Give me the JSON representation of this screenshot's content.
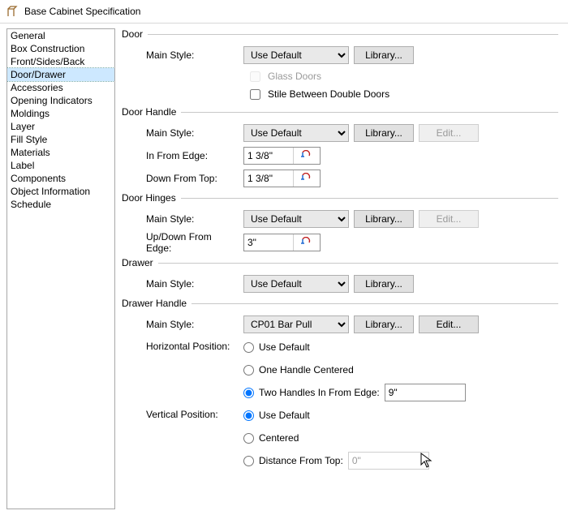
{
  "window": {
    "title": "Base Cabinet Specification"
  },
  "nav": {
    "items": [
      "General",
      "Box Construction",
      "Front/Sides/Back",
      "Door/Drawer",
      "Accessories",
      "Opening Indicators",
      "Moldings",
      "Layer",
      "Fill Style",
      "Materials",
      "Label",
      "Components",
      "Object Information",
      "Schedule"
    ],
    "selected_index": 3
  },
  "labels": {
    "main_style": "Main Style:",
    "library": "Library...",
    "edit": "Edit...",
    "in_from_edge": "In From Edge:",
    "down_from_top": "Down From Top:",
    "up_down_from_edge": "Up/Down From Edge:",
    "horizontal_position": "Horizontal Position:",
    "vertical_position": "Vertical Position:",
    "use_default_opt": "Use Default",
    "one_handle": "One Handle Centered",
    "two_handles": "Two Handles In From Edge:",
    "centered": "Centered",
    "distance_from_top": "Distance From Top:",
    "glass_doors": "Glass Doors",
    "stile_between": "Stile Between Double Doors"
  },
  "sections": {
    "door": {
      "title": "Door",
      "main_style_value": "Use Default"
    },
    "door_handle": {
      "title": "Door Handle",
      "main_style_value": "Use Default",
      "in_from_edge": "1 3/8\"",
      "down_from_top": "1 3/8\""
    },
    "door_hinges": {
      "title": "Door Hinges",
      "main_style_value": "Use Default",
      "up_down_from_edge": "3\""
    },
    "drawer": {
      "title": "Drawer",
      "main_style_value": "Use Default"
    },
    "drawer_handle": {
      "title": "Drawer Handle",
      "main_style_value": "CP01 Bar Pull",
      "two_handles_value": "9\"",
      "distance_from_top_value": "0\""
    }
  },
  "colors": {
    "selected_bg": "#cde8ff",
    "border": "#a7a7a7",
    "section_line": "#c8c8c8",
    "icon_red": "#c02020",
    "icon_blue": "#1060d0"
  }
}
